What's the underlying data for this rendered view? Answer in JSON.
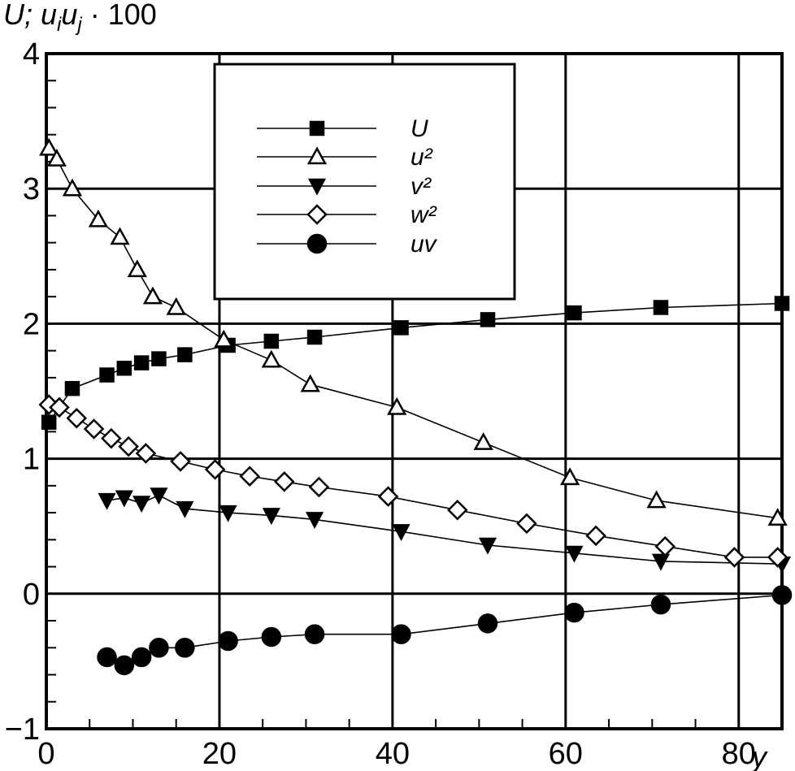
{
  "chart_data": {
    "type": "line",
    "ylabel": "U; u_i u_j · 100",
    "xlabel": "y",
    "xlim": [
      0,
      85
    ],
    "ylim": [
      -1,
      4
    ],
    "xticks": [
      0,
      20,
      40,
      60,
      80
    ],
    "yticks": [
      -1,
      0,
      1,
      2,
      3,
      4
    ],
    "xtick_labels": [
      "0",
      "20",
      "40",
      "60",
      "80"
    ],
    "ytick_labels": [
      "−1",
      "0",
      "1",
      "2",
      "3",
      "4"
    ],
    "grid": true,
    "legend_position": "top-center",
    "series": [
      {
        "name": "U",
        "marker": "filled-square",
        "x": [
          0.3,
          3,
          7,
          9,
          11,
          13,
          16,
          21,
          26,
          31,
          41,
          51,
          61,
          71,
          85
        ],
        "y": [
          1.27,
          1.52,
          1.62,
          1.67,
          1.71,
          1.74,
          1.77,
          1.84,
          1.87,
          1.9,
          1.97,
          2.03,
          2.08,
          2.12,
          2.15
        ]
      },
      {
        "name": "u²",
        "marker": "open-triangle",
        "x": [
          0.3,
          1.2,
          3,
          6,
          8.5,
          10.5,
          12.3,
          15,
          20.5,
          26,
          30.5,
          40.5,
          50.5,
          60.5,
          70.5,
          84.5
        ],
        "y": [
          3.3,
          3.22,
          3.0,
          2.77,
          2.64,
          2.4,
          2.2,
          2.12,
          1.88,
          1.73,
          1.55,
          1.38,
          1.12,
          0.86,
          0.69,
          0.56
        ]
      },
      {
        "name": "v²",
        "marker": "filled-down-triangle",
        "x": [
          7,
          9,
          11,
          13,
          16,
          21,
          26,
          31,
          41,
          51,
          61,
          71,
          85
        ],
        "y": [
          0.69,
          0.71,
          0.67,
          0.73,
          0.63,
          0.6,
          0.58,
          0.55,
          0.46,
          0.36,
          0.3,
          0.24,
          0.22
        ]
      },
      {
        "name": "w²",
        "marker": "open-diamond",
        "x": [
          0.3,
          1.5,
          3.5,
          5.5,
          7.5,
          9.5,
          11.5,
          15.5,
          19.5,
          23.5,
          27.5,
          31.5,
          39.5,
          47.5,
          55.5,
          63.5,
          71.5,
          79.5,
          84.5
        ],
        "y": [
          1.4,
          1.38,
          1.3,
          1.22,
          1.15,
          1.09,
          1.04,
          0.98,
          0.92,
          0.87,
          0.83,
          0.79,
          0.72,
          0.62,
          0.52,
          0.43,
          0.35,
          0.27,
          0.27
        ]
      },
      {
        "name": "uv",
        "marker": "filled-circle",
        "x": [
          7,
          9,
          11,
          13,
          16,
          21,
          26,
          31,
          41,
          51,
          61,
          71,
          85
        ],
        "y": [
          -0.47,
          -0.53,
          -0.47,
          -0.4,
          -0.4,
          -0.35,
          -0.32,
          -0.3,
          -0.3,
          -0.22,
          -0.14,
          -0.08,
          -0.01
        ]
      }
    ]
  }
}
